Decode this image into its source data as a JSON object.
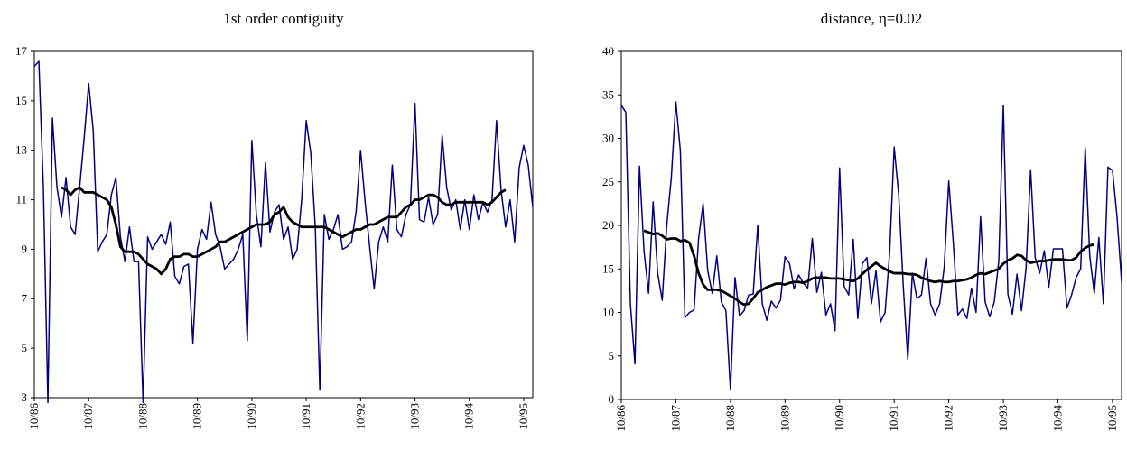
{
  "chart_data": [
    {
      "type": "line",
      "title": "1st order contiguity",
      "categories": [
        "10/86",
        null,
        null,
        null,
        null,
        null,
        null,
        null,
        null,
        null,
        null,
        null,
        "10/87",
        null,
        null,
        null,
        null,
        null,
        null,
        null,
        null,
        null,
        null,
        null,
        "10/88",
        null,
        null,
        null,
        null,
        null,
        null,
        null,
        null,
        null,
        null,
        null,
        "10/89",
        null,
        null,
        null,
        null,
        null,
        null,
        null,
        null,
        null,
        null,
        null,
        "10/90",
        null,
        null,
        null,
        null,
        null,
        null,
        null,
        null,
        null,
        null,
        null,
        "10/91",
        null,
        null,
        null,
        null,
        null,
        null,
        null,
        null,
        null,
        null,
        null,
        "10/92",
        null,
        null,
        null,
        null,
        null,
        null,
        null,
        null,
        null,
        null,
        null,
        "10/93",
        null,
        null,
        null,
        null,
        null,
        null,
        null,
        null,
        null,
        null,
        null,
        "10/94",
        null,
        null,
        null,
        null,
        null,
        null,
        null,
        null,
        null,
        null,
        null,
        "10/95",
        null,
        null
      ],
      "series": [
        {
          "color": "#000080",
          "values": [
            16.4,
            16.6,
            11.5,
            2.8,
            14.3,
            11.5,
            10.3,
            11.9,
            9.9,
            9.6,
            11.5,
            13.5,
            15.7,
            13.8,
            8.9,
            9.3,
            9.6,
            11.2,
            11.9,
            9.5,
            8.5,
            9.9,
            8.5,
            8.5,
            2.8,
            9.5,
            9.0,
            9.3,
            9.6,
            9.2,
            10.1,
            7.9,
            7.6,
            8.3,
            8.4,
            5.2,
            9.0,
            9.8,
            9.4,
            10.9,
            9.6,
            9.1,
            8.2,
            8.4,
            8.6,
            9.0,
            9.6,
            5.3,
            13.4,
            10.4,
            9.1,
            12.5,
            9.7,
            10.5,
            10.8,
            9.4,
            9.9,
            8.6,
            9.0,
            11.0,
            14.2,
            12.9,
            9.9,
            3.3,
            10.4,
            9.4,
            9.8,
            10.4,
            9.0,
            9.1,
            9.3,
            10.5,
            13.0,
            10.9,
            9.1,
            7.4,
            9.3,
            9.9,
            9.3,
            12.4,
            9.8,
            9.5,
            10.4,
            10.8,
            14.9,
            10.2,
            10.1,
            11.1,
            10.0,
            10.4,
            13.6,
            11.5,
            10.6,
            11.0,
            9.8,
            11.0,
            9.8,
            11.2,
            10.2,
            10.9,
            10.5,
            11.0,
            14.2,
            11.4,
            9.9,
            11.0,
            9.3,
            12.3,
            13.2,
            12.4,
            10.7
          ]
        },
        {
          "color": "#000000",
          "values": [
            null,
            null,
            null,
            null,
            null,
            null,
            11.5,
            11.4,
            11.2,
            11.4,
            11.5,
            11.3,
            11.3,
            11.3,
            11.2,
            11.1,
            11.0,
            10.7,
            10.0,
            9.1,
            8.9,
            8.9,
            8.9,
            8.8,
            8.6,
            8.4,
            8.3,
            8.2,
            8.0,
            8.2,
            8.6,
            8.7,
            8.7,
            8.8,
            8.8,
            8.7,
            8.7,
            8.8,
            8.9,
            9.0,
            9.1,
            9.3,
            9.3,
            9.4,
            9.5,
            9.6,
            9.7,
            9.8,
            9.9,
            10.0,
            10.0,
            10.0,
            10.1,
            10.4,
            10.5,
            10.7,
            10.3,
            10.1,
            10.0,
            9.9,
            9.9,
            9.9,
            9.9,
            9.9,
            9.9,
            9.8,
            9.7,
            9.6,
            9.5,
            9.6,
            9.7,
            9.8,
            9.8,
            9.9,
            10.0,
            10.0,
            10.1,
            10.2,
            10.3,
            10.3,
            10.3,
            10.5,
            10.7,
            10.8,
            11.0,
            11.0,
            11.1,
            11.2,
            11.2,
            11.1,
            10.9,
            10.8,
            10.8,
            10.9,
            10.9,
            10.9,
            10.9,
            10.9,
            10.9,
            10.9,
            10.8,
            10.9,
            11.1,
            11.3,
            11.4,
            null,
            null,
            null,
            null,
            null,
            null
          ]
        }
      ],
      "ylim": [
        3,
        17
      ],
      "yticks": [
        3,
        5,
        7,
        9,
        11,
        13,
        15,
        17
      ]
    },
    {
      "type": "line",
      "title": "distance, η=0.02",
      "categories": [
        "10/86",
        null,
        null,
        null,
        null,
        null,
        null,
        null,
        null,
        null,
        null,
        null,
        "10/87",
        null,
        null,
        null,
        null,
        null,
        null,
        null,
        null,
        null,
        null,
        null,
        "10/88",
        null,
        null,
        null,
        null,
        null,
        null,
        null,
        null,
        null,
        null,
        null,
        "10/89",
        null,
        null,
        null,
        null,
        null,
        null,
        null,
        null,
        null,
        null,
        null,
        "10/90",
        null,
        null,
        null,
        null,
        null,
        null,
        null,
        null,
        null,
        null,
        null,
        "10/91",
        null,
        null,
        null,
        null,
        null,
        null,
        null,
        null,
        null,
        null,
        null,
        "10/92",
        null,
        null,
        null,
        null,
        null,
        null,
        null,
        null,
        null,
        null,
        null,
        "10/93",
        null,
        null,
        null,
        null,
        null,
        null,
        null,
        null,
        null,
        null,
        null,
        "10/94",
        null,
        null,
        null,
        null,
        null,
        null,
        null,
        null,
        null,
        null,
        null,
        "10/95",
        null,
        null
      ],
      "series": [
        {
          "color": "#000080",
          "values": [
            33.8,
            33.0,
            11,
            4.1,
            26.8,
            17,
            12.2,
            22.7,
            14.5,
            11.4,
            20,
            25.5,
            34.2,
            28.5,
            9.4,
            10.0,
            10.3,
            18.5,
            22.5,
            14.8,
            12.2,
            16.5,
            11.2,
            10.2,
            1.1,
            14.0,
            9.6,
            10.2,
            12.0,
            12.1,
            20.0,
            11.0,
            9.1,
            11.3,
            10.5,
            11.4,
            16.4,
            15.6,
            12.7,
            14.3,
            13.4,
            12.8,
            18.5,
            12.3,
            14.6,
            9.7,
            11.0,
            7.9,
            26.6,
            13.0,
            12.0,
            18.4,
            9.3,
            15.6,
            16.3,
            11.0,
            14.8,
            8.9,
            10.0,
            16.8,
            29.0,
            23.5,
            13.0,
            4.6,
            14.5,
            11.6,
            12.0,
            16.2,
            11.0,
            9.7,
            11.0,
            15.2,
            25.1,
            18,
            9.7,
            10.4,
            9.3,
            12.8,
            10.0,
            21.0,
            11.2,
            9.5,
            11.2,
            15.9,
            33.8,
            12.1,
            9.8,
            14.4,
            10.2,
            15.1,
            26.4,
            16.3,
            14.5,
            17.1,
            12.9,
            17.3,
            17.3,
            17.3,
            10.5,
            12,
            14,
            15,
            28.9,
            16.5,
            12.2,
            18.6,
            11.0,
            26.7,
            26.3,
            21,
            13.5
          ]
        },
        {
          "color": "#000000",
          "values": [
            null,
            null,
            null,
            null,
            null,
            19.4,
            19.2,
            19.0,
            19.1,
            18.8,
            18.4,
            18.5,
            18.5,
            18.2,
            18.3,
            18.0,
            16.5,
            14.5,
            13.2,
            12.6,
            12.6,
            12.6,
            12.5,
            12.2,
            11.9,
            11.6,
            11.2,
            10.9,
            11.0,
            11.6,
            12.3,
            12.6,
            12.9,
            13.1,
            13.3,
            13.3,
            13.2,
            13.4,
            13.5,
            13.5,
            13.4,
            13.6,
            13.9,
            14.0,
            14.0,
            14.0,
            13.9,
            13.9,
            13.9,
            13.8,
            13.7,
            13.6,
            13.9,
            14.4,
            14.9,
            15.3,
            15.7,
            15.3,
            15.0,
            14.7,
            14.5,
            14.5,
            14.5,
            14.4,
            14.4,
            14.3,
            14.0,
            13.8,
            13.6,
            13.5,
            13.6,
            13.5,
            13.5,
            13.6,
            13.6,
            13.7,
            13.8,
            14.0,
            14.3,
            14.5,
            14.4,
            14.6,
            14.8,
            15.0,
            15.6,
            16.0,
            16.2,
            16.6,
            16.5,
            16.0,
            15.7,
            15.8,
            15.9,
            15.9,
            16.0,
            16.1,
            16.1,
            16.1,
            16.0,
            16.0,
            16.3,
            17.0,
            17.4,
            17.7,
            17.8,
            null,
            null,
            null,
            null,
            null,
            null
          ]
        }
      ],
      "ylim": [
        0,
        40
      ],
      "yticks": [
        0,
        5,
        10,
        15,
        20,
        25,
        30,
        35,
        40
      ]
    }
  ]
}
